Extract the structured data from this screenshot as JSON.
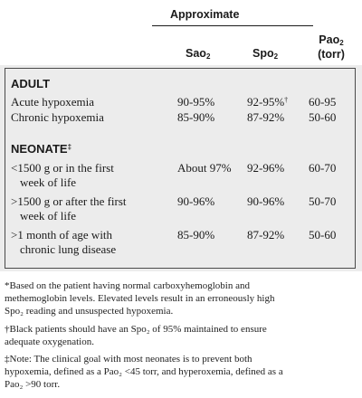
{
  "header": {
    "group_label": "Approximate",
    "col_sao_base": "Sao",
    "col_sao_sub": "2",
    "col_spo_base": "Spo",
    "col_spo_sub": "2",
    "col_pao_base": "Pao",
    "col_pao_sub": "2",
    "col_pao_unit": "(torr)"
  },
  "sections": [
    {
      "title": "ADULT",
      "title_mark": "",
      "rows": [
        {
          "label": [
            "Acute hypoxemia"
          ],
          "sao": "90-95%",
          "spo": "92-95%",
          "spo_mark": "†",
          "pao": "60-95"
        },
        {
          "label": [
            "Chronic hypoxemia"
          ],
          "sao": "85-90%",
          "spo": "87-92%",
          "spo_mark": "",
          "pao": "50-60"
        }
      ]
    },
    {
      "title": "NEONATE",
      "title_mark": "‡",
      "rows": [
        {
          "label": [
            "<1500 g or in the first",
            "week of life"
          ],
          "sao": "About 97%",
          "spo": "92-96%",
          "spo_mark": "",
          "pao": "60-70"
        },
        {
          "label": [
            ">1500 g or after the first",
            "week of life"
          ],
          "sao": "90-96%",
          "spo": "90-96%",
          "spo_mark": "",
          "pao": "50-70"
        },
        {
          "label": [
            ">1 month of age with",
            "chronic lung disease"
          ],
          "sao": "85-90%",
          "spo": "87-92%",
          "spo_mark": "",
          "pao": "50-60"
        }
      ]
    }
  ],
  "footnotes": {
    "star": [
      "*Based on the patient having normal carboxyhemoglobin and",
      "methemoglobin levels. Elevated levels result in an erroneously high",
      "Spo₂ reading and unsuspected hypoxemia."
    ],
    "dagger": [
      "†Black patients should have an Spo₂ of 95% maintained to ensure",
      "adequate oxygenation."
    ],
    "ddagger": [
      "‡Note: The clinical goal with most neonates is to prevent both",
      "hypoxemia, defined as a Pao₂ <45 torr, and hyperoxemia, defined as a",
      "Pao₂ >90 torr."
    ]
  }
}
